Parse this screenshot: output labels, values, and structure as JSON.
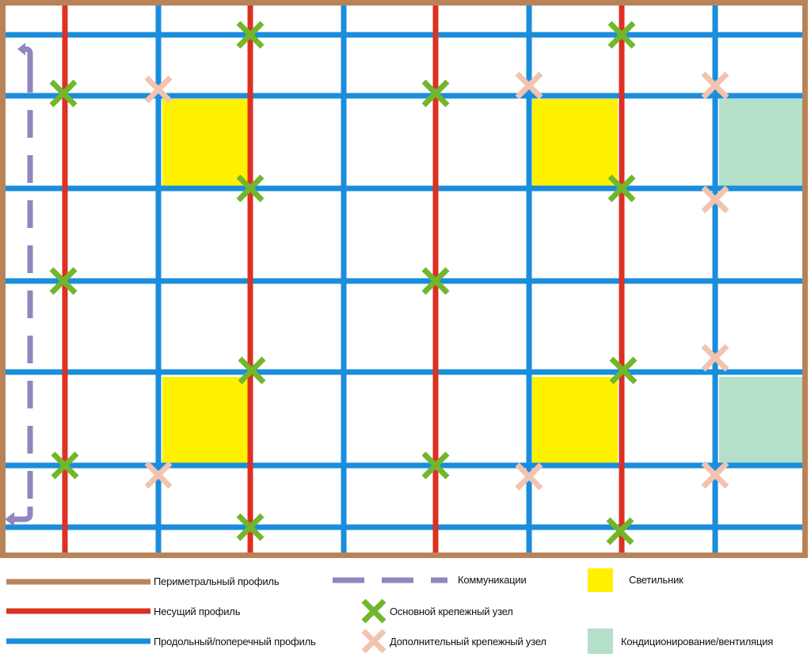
{
  "colors": {
    "perimeter": "#b9835a",
    "bearing": "#dc3122",
    "longitudinal": "#1a8ddc",
    "communications": "#8f87bd",
    "lamp": "#fff200",
    "hvac": "#b4dfc9",
    "main_node": "#72b62c",
    "extra_node": "#f2c3ae"
  },
  "legend": {
    "perimeter": "Периметральный профиль",
    "bearing": "Несущий профиль",
    "longitudinal": "Продольный/поперечный профиль",
    "communications": "Коммуникации",
    "main_node": "Основной крепежный узел",
    "extra_node": "Дополнительный крепежный узел",
    "lamp": "Светильник",
    "hvac": "Кондиционирование/вентиляция"
  }
}
